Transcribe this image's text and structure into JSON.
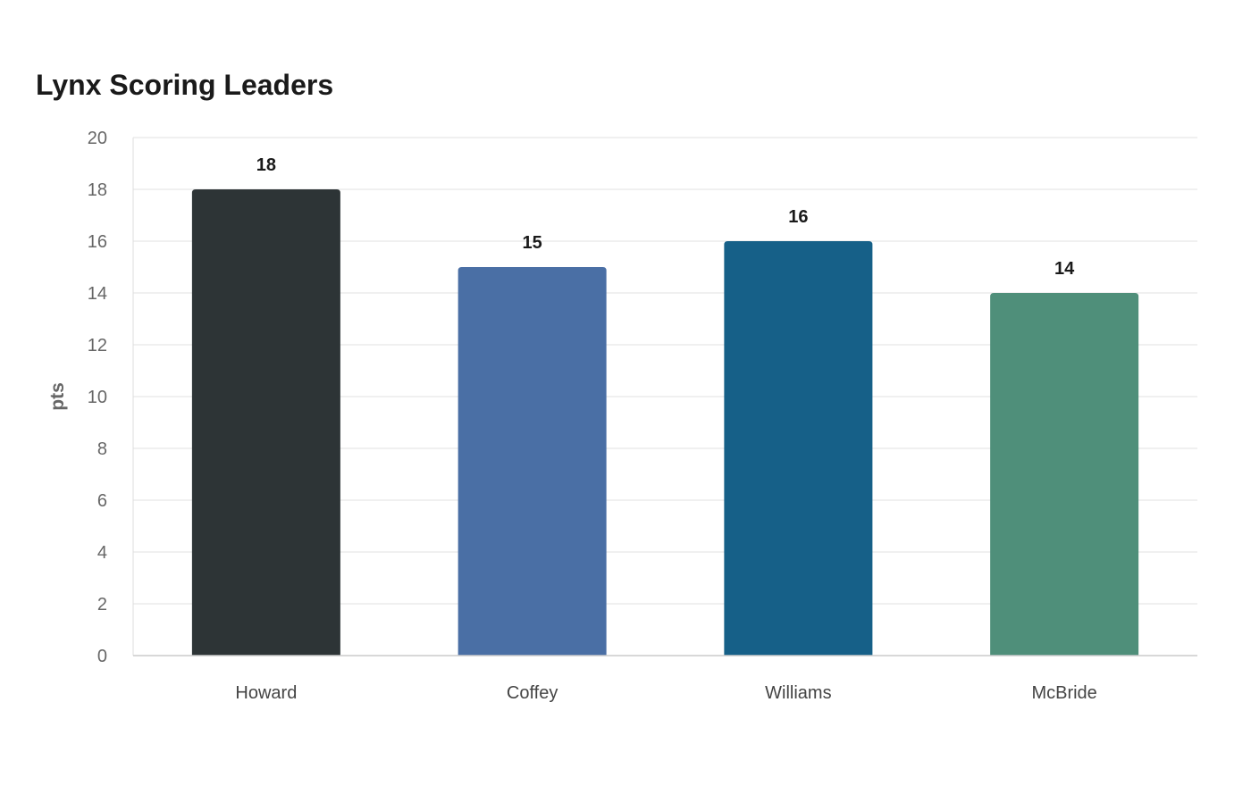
{
  "chart_data": {
    "type": "bar",
    "title": "Lynx Scoring Leaders",
    "xlabel": "",
    "ylabel": "pts",
    "categories": [
      "Howard",
      "Coffey",
      "Williams",
      "McBride"
    ],
    "values": [
      18,
      15,
      16,
      14
    ],
    "colors": [
      "#2d3436",
      "#4a6fa5",
      "#166088",
      "#4f8f7a"
    ],
    "ylim": [
      0,
      20
    ],
    "yticks": [
      0,
      2,
      4,
      6,
      8,
      10,
      12,
      14,
      16,
      18,
      20
    ],
    "grid": true,
    "legend": "none",
    "data_labels": true
  }
}
